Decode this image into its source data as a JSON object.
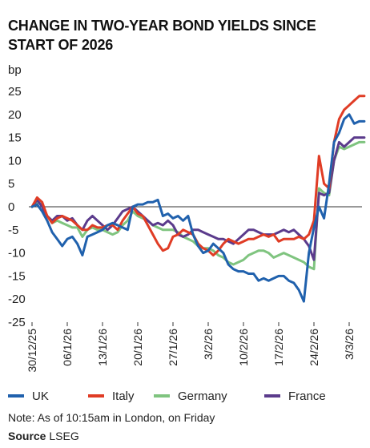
{
  "chart_data": {
    "type": "line",
    "title": "CHANGE IN TWO-YEAR BOND YIELDS SINCE START OF 2026",
    "ylabel": "bp",
    "ylim": [
      -25,
      25
    ],
    "yticks": [
      25,
      20,
      15,
      10,
      5,
      0,
      -5,
      -10,
      -15,
      -20,
      -25
    ],
    "ytick_labels": [
      "25",
      "20",
      "15",
      "10",
      "5",
      "0",
      "-5",
      "-10",
      "-15",
      "-20",
      "-25"
    ],
    "x_range": [
      "2025-12-30",
      "2026-03-06"
    ],
    "xticks": [
      "2025-12-30",
      "2026-01-06",
      "2026-01-13",
      "2026-01-20",
      "2026-01-27",
      "2026-02-03",
      "2026-02-10",
      "2026-02-17",
      "2026-02-24",
      "2026-03-03"
    ],
    "xtick_labels": [
      "30/12/25",
      "06/1/26",
      "13/1/26",
      "20/1/26",
      "27/1/26",
      "3/2/26",
      "10/2/26",
      "17/2/26",
      "24/2/26",
      "3/3/26"
    ],
    "grid": false,
    "zero_line": true,
    "legend_position": "bottom",
    "series": [
      {
        "name": "UK",
        "color": "#2061ad",
        "x": [
          "2025-12-30",
          "2025-12-31",
          "2026-01-01",
          "2026-01-02",
          "2026-01-03",
          "2026-01-04",
          "2026-01-05",
          "2026-01-06",
          "2026-01-07",
          "2026-01-08",
          "2026-01-09",
          "2026-01-10",
          "2026-01-11",
          "2026-01-12",
          "2026-01-13",
          "2026-01-14",
          "2026-01-15",
          "2026-01-16",
          "2026-01-17",
          "2026-01-18",
          "2026-01-19",
          "2026-01-20",
          "2026-01-21",
          "2026-01-22",
          "2026-01-23",
          "2026-01-24",
          "2026-01-25",
          "2026-01-26",
          "2026-01-27",
          "2026-01-28",
          "2026-01-29",
          "2026-01-30",
          "2026-01-31",
          "2026-02-01",
          "2026-02-02",
          "2026-02-03",
          "2026-02-04",
          "2026-02-05",
          "2026-02-06",
          "2026-02-07",
          "2026-02-08",
          "2026-02-09",
          "2026-02-10",
          "2026-02-11",
          "2026-02-12",
          "2026-02-13",
          "2026-02-14",
          "2026-02-15",
          "2026-02-16",
          "2026-02-17",
          "2026-02-18",
          "2026-02-19",
          "2026-02-20",
          "2026-02-21",
          "2026-02-22",
          "2026-02-23",
          "2026-02-24",
          "2026-02-25",
          "2026-02-26",
          "2026-02-27",
          "2026-02-28",
          "2026-03-01",
          "2026-03-02",
          "2026-03-03",
          "2026-03-04",
          "2026-03-05",
          "2026-03-06"
        ],
        "y": [
          0,
          0.5,
          -1,
          -3,
          -5.5,
          -7,
          -8.5,
          -7,
          -6.5,
          -8,
          -10.5,
          -6.5,
          -6,
          -5.5,
          -5,
          -4,
          -3.5,
          -4,
          -4.5,
          -5,
          0,
          0.5,
          0.5,
          1,
          1,
          1.5,
          -2,
          -1.5,
          -2.5,
          -2,
          -3,
          -2,
          -6,
          -8.5,
          -10,
          -9.5,
          -8,
          -9,
          -10,
          -12.5,
          -13.5,
          -14,
          -14,
          -14.5,
          -14.5,
          -16,
          -15.5,
          -16,
          -15.5,
          -15,
          -15,
          -16,
          -16.5,
          -18,
          -20.5,
          -10,
          -4.5,
          0,
          -2.5,
          5,
          14,
          16,
          19,
          20,
          18,
          18.5,
          18.5
        ]
      },
      {
        "name": "Italy",
        "color": "#e03c25",
        "x": [
          "2025-12-30",
          "2025-12-31",
          "2026-01-01",
          "2026-01-02",
          "2026-01-03",
          "2026-01-04",
          "2026-01-05",
          "2026-01-06",
          "2026-01-07",
          "2026-01-08",
          "2026-01-09",
          "2026-01-10",
          "2026-01-11",
          "2026-01-12",
          "2026-01-13",
          "2026-01-14",
          "2026-01-15",
          "2026-01-16",
          "2026-01-17",
          "2026-01-18",
          "2026-01-19",
          "2026-01-20",
          "2026-01-21",
          "2026-01-22",
          "2026-01-23",
          "2026-01-24",
          "2026-01-25",
          "2026-01-26",
          "2026-01-27",
          "2026-01-28",
          "2026-01-29",
          "2026-01-30",
          "2026-01-31",
          "2026-02-01",
          "2026-02-02",
          "2026-02-03",
          "2026-02-04",
          "2026-02-05",
          "2026-02-06",
          "2026-02-07",
          "2026-02-08",
          "2026-02-09",
          "2026-02-10",
          "2026-02-11",
          "2026-02-12",
          "2026-02-13",
          "2026-02-14",
          "2026-02-15",
          "2026-02-16",
          "2026-02-17",
          "2026-02-18",
          "2026-02-19",
          "2026-02-20",
          "2026-02-21",
          "2026-02-22",
          "2026-02-23",
          "2026-02-24",
          "2026-02-25",
          "2026-02-26",
          "2026-02-27",
          "2026-02-28",
          "2026-03-01",
          "2026-03-02",
          "2026-03-03",
          "2026-03-04",
          "2026-03-05",
          "2026-03-06"
        ],
        "y": [
          0,
          2,
          1,
          -2,
          -3.5,
          -2.5,
          -2,
          -2.5,
          -3,
          -4,
          -5,
          -5,
          -4,
          -4.5,
          -4.5,
          -4,
          -4,
          -5,
          -3,
          -1.5,
          0,
          -1.5,
          -2,
          -4,
          -6,
          -8,
          -9.5,
          -9,
          -6.5,
          -6,
          -5,
          -5.5,
          -6,
          -8,
          -9,
          -9.5,
          -10.5,
          -9.5,
          -8,
          -7,
          -7.5,
          -8,
          -7.5,
          -7,
          -7,
          -6.5,
          -6,
          -6.5,
          -6,
          -7.5,
          -7,
          -7,
          -7,
          -6.5,
          -7,
          -6,
          -3,
          11,
          5,
          4,
          14,
          19,
          21,
          22,
          23,
          24,
          24
        ]
      },
      {
        "name": "Germany",
        "color": "#7fc47f",
        "x": [
          "2025-12-30",
          "2025-12-31",
          "2026-01-01",
          "2026-01-02",
          "2026-01-03",
          "2026-01-04",
          "2026-01-05",
          "2026-01-06",
          "2026-01-07",
          "2026-01-08",
          "2026-01-09",
          "2026-01-10",
          "2026-01-11",
          "2026-01-12",
          "2026-01-13",
          "2026-01-14",
          "2026-01-15",
          "2026-01-16",
          "2026-01-17",
          "2026-01-18",
          "2026-01-19",
          "2026-01-20",
          "2026-01-21",
          "2026-01-22",
          "2026-01-23",
          "2026-01-24",
          "2026-01-25",
          "2026-01-26",
          "2026-01-27",
          "2026-01-28",
          "2026-01-29",
          "2026-01-30",
          "2026-01-31",
          "2026-02-01",
          "2026-02-02",
          "2026-02-03",
          "2026-02-04",
          "2026-02-05",
          "2026-02-06",
          "2026-02-07",
          "2026-02-08",
          "2026-02-09",
          "2026-02-10",
          "2026-02-11",
          "2026-02-12",
          "2026-02-13",
          "2026-02-14",
          "2026-02-15",
          "2026-02-16",
          "2026-02-17",
          "2026-02-18",
          "2026-02-19",
          "2026-02-20",
          "2026-02-21",
          "2026-02-22",
          "2026-02-23",
          "2026-02-24",
          "2026-02-25",
          "2026-02-26",
          "2026-02-27",
          "2026-02-28",
          "2026-03-01",
          "2026-03-02",
          "2026-03-03",
          "2026-03-04",
          "2026-03-05",
          "2026-03-06"
        ],
        "y": [
          0,
          1,
          0.5,
          -2,
          -3.5,
          -3,
          -3.5,
          -4,
          -4.5,
          -4.5,
          -6.5,
          -5,
          -4.5,
          -5,
          -5,
          -5.5,
          -6,
          -5.5,
          -4,
          -3,
          -1,
          -2,
          -2.5,
          -3,
          -4,
          -4.5,
          -5,
          -5,
          -5,
          -5.5,
          -6.5,
          -7,
          -7.5,
          -8.5,
          -9,
          -9,
          -9.5,
          -10.5,
          -11,
          -12,
          -12.5,
          -12,
          -11.5,
          -10.5,
          -10,
          -9.5,
          -9.5,
          -10,
          -11,
          -10.5,
          -10,
          -10.5,
          -11,
          -11.5,
          -12,
          -13,
          -13.5,
          4,
          3,
          2.5,
          10,
          13,
          12.5,
          13,
          13.5,
          14,
          14
        ]
      },
      {
        "name": "France",
        "color": "#5b3b8c",
        "x": [
          "2025-12-30",
          "2025-12-31",
          "2026-01-01",
          "2026-01-02",
          "2026-01-03",
          "2026-01-04",
          "2026-01-05",
          "2026-01-06",
          "2026-01-07",
          "2026-01-08",
          "2026-01-09",
          "2026-01-10",
          "2026-01-11",
          "2026-01-12",
          "2026-01-13",
          "2026-01-14",
          "2026-01-15",
          "2026-01-16",
          "2026-01-17",
          "2026-01-18",
          "2026-01-19",
          "2026-01-20",
          "2026-01-21",
          "2026-01-22",
          "2026-01-23",
          "2026-01-24",
          "2026-01-25",
          "2026-01-26",
          "2026-01-27",
          "2026-01-28",
          "2026-01-29",
          "2026-01-30",
          "2026-01-31",
          "2026-02-01",
          "2026-02-02",
          "2026-02-03",
          "2026-02-04",
          "2026-02-05",
          "2026-02-06",
          "2026-02-07",
          "2026-02-08",
          "2026-02-09",
          "2026-02-10",
          "2026-02-11",
          "2026-02-12",
          "2026-02-13",
          "2026-02-14",
          "2026-02-15",
          "2026-02-16",
          "2026-02-17",
          "2026-02-18",
          "2026-02-19",
          "2026-02-20",
          "2026-02-21",
          "2026-02-22",
          "2026-02-23",
          "2026-02-24",
          "2026-02-25",
          "2026-02-26",
          "2026-02-27",
          "2026-02-28",
          "2026-03-01",
          "2026-03-02",
          "2026-03-03",
          "2026-03-04",
          "2026-03-05",
          "2026-03-06"
        ],
        "y": [
          0,
          1.5,
          0,
          -2,
          -3,
          -2,
          -2,
          -3,
          -2.5,
          -4,
          -5,
          -3,
          -2,
          -3,
          -4,
          -5,
          -4,
          -2.5,
          -1,
          -0.5,
          0,
          -1,
          -2,
          -3,
          -4,
          -3.5,
          -4,
          -3,
          -4,
          -6,
          -6.5,
          -6,
          -5,
          -5,
          -5.5,
          -6,
          -6.5,
          -7,
          -7,
          -7.5,
          -8,
          -7,
          -6,
          -5,
          -5,
          -5.5,
          -6,
          -6,
          -6,
          -5.5,
          -5,
          -5.5,
          -5,
          -6,
          -7,
          -8.5,
          -11.5,
          3,
          2.5,
          3,
          10,
          14,
          13,
          14,
          15,
          15,
          15
        ]
      }
    ]
  },
  "legend": {
    "items": [
      {
        "label": "UK",
        "color": "#2061ad"
      },
      {
        "label": "Italy",
        "color": "#e03c25"
      },
      {
        "label": "Germany",
        "color": "#7fc47f"
      },
      {
        "label": "France",
        "color": "#5b3b8c"
      }
    ]
  },
  "note": "Note: As of 10:15am in London, on Friday",
  "source": {
    "label": "Source",
    "value": "LSEG"
  }
}
